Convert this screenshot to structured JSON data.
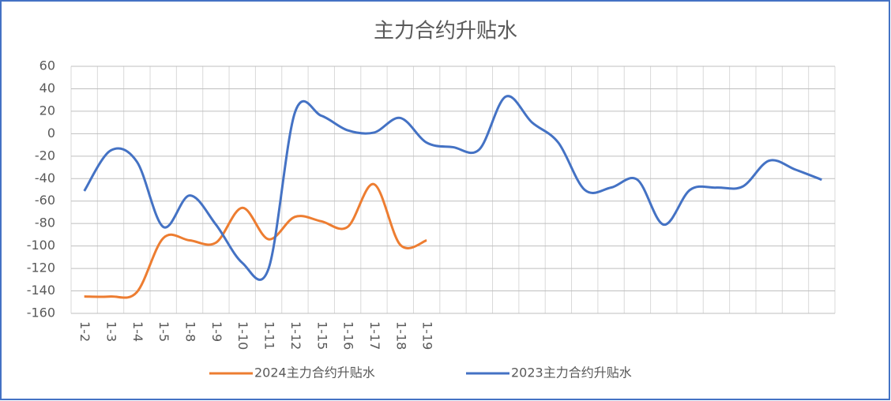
{
  "chart_data": {
    "type": "line",
    "title": "主力合约升贴水",
    "categories": [
      "1-2",
      "1-3",
      "1-4",
      "1-5",
      "1-8",
      "1-9",
      "1-10",
      "1-11",
      "1-12",
      "1-15",
      "1-16",
      "1-17",
      "1-18",
      "1-19",
      null,
      null,
      null,
      null,
      null,
      null,
      null,
      null,
      null,
      null,
      null,
      null,
      null,
      null,
      null
    ],
    "series": [
      {
        "name": "2024主力合约升贴水",
        "color": "#ed7d31",
        "values": [
          -145,
          -145,
          -141,
          -93,
          -95,
          -97,
          -66,
          -94,
          -74,
          -78,
          -83,
          -45,
          -99,
          -95,
          null,
          null,
          null,
          null,
          null,
          null,
          null,
          null,
          null,
          null,
          null,
          null,
          null,
          null,
          null
        ]
      },
      {
        "name": "2023主力合约升贴水",
        "color": "#4472c4",
        "values": [
          -51,
          -15,
          -25,
          -83,
          -55,
          -81,
          -115,
          -120,
          19,
          16,
          3,
          1,
          14,
          -8,
          -12,
          -14,
          33,
          10,
          -8,
          -50,
          -48,
          -41,
          -81,
          -50,
          -48,
          -47,
          -24,
          -32,
          -41
        ]
      }
    ],
    "ylim": [
      -160,
      60
    ],
    "yticks": [
      -160,
      -140,
      -120,
      -100,
      -80,
      -60,
      -40,
      -20,
      0,
      20,
      40,
      60
    ],
    "grid": true,
    "legend": "bottom"
  }
}
